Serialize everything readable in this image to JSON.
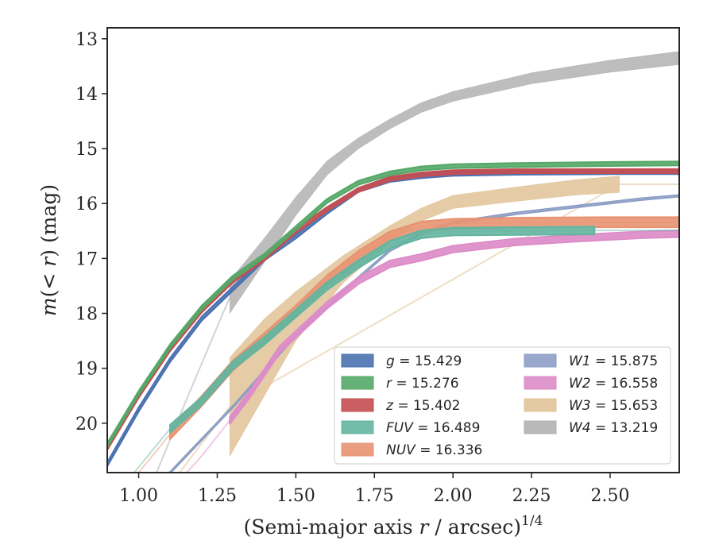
{
  "chart_data": {
    "type": "line",
    "xlabel_main": "(Semi-major axis ",
    "xlabel_var": "r",
    "xlabel_unit": " / arcsec)",
    "xlabel_sup": "1/4",
    "ylabel_pre": "m",
    "ylabel_mid": "(< ",
    "ylabel_var": "r",
    "ylabel_post": ") (mag)",
    "xlim": [
      0.9,
      2.72
    ],
    "ylim": [
      20.9,
      12.8
    ],
    "y_inverted": true,
    "xticks": [
      "1.00",
      "1.25",
      "1.50",
      "1.75",
      "2.00",
      "2.25",
      "2.50"
    ],
    "xtick_values": [
      1.0,
      1.25,
      1.5,
      1.75,
      2.0,
      2.25,
      2.5
    ],
    "yticks": [
      "13",
      "14",
      "15",
      "16",
      "17",
      "18",
      "19",
      "20"
    ],
    "ytick_values": [
      13,
      14,
      15,
      16,
      17,
      18,
      19,
      20
    ],
    "legend_position": "lower-right",
    "series": [
      {
        "key": "g",
        "var": "g",
        "value": "= 15.429",
        "color": "#4c72b0",
        "halfwidth": 0.035,
        "x": [
          0.9,
          1.0,
          1.1,
          1.2,
          1.3,
          1.4,
          1.5,
          1.6,
          1.7,
          1.8,
          1.9,
          2.0,
          2.2,
          2.5,
          2.72
        ],
        "y": [
          20.75,
          19.75,
          18.85,
          18.1,
          17.55,
          17.0,
          16.6,
          16.15,
          15.75,
          15.57,
          15.5,
          15.46,
          15.44,
          15.43,
          15.43
        ]
      },
      {
        "key": "r",
        "var": "r",
        "value": "= 15.276",
        "color": "#55a868",
        "halfwidth": 0.035,
        "x": [
          0.9,
          1.0,
          1.1,
          1.2,
          1.3,
          1.4,
          1.5,
          1.6,
          1.7,
          1.8,
          1.9,
          2.0,
          2.2,
          2.5,
          2.72
        ],
        "y": [
          20.4,
          19.45,
          18.6,
          17.9,
          17.35,
          16.95,
          16.45,
          15.95,
          15.62,
          15.45,
          15.36,
          15.32,
          15.3,
          15.28,
          15.27
        ]
      },
      {
        "key": "z",
        "var": "z",
        "value": "= 15.402",
        "color": "#c44e52",
        "halfwidth": 0.035,
        "x": [
          0.9,
          1.0,
          1.1,
          1.2,
          1.3,
          1.4,
          1.5,
          1.6,
          1.7,
          1.8,
          1.9,
          2.0,
          2.2,
          2.5,
          2.72
        ],
        "y": [
          20.45,
          19.5,
          18.65,
          17.95,
          17.4,
          17.0,
          16.5,
          16.1,
          15.75,
          15.55,
          15.47,
          15.43,
          15.41,
          15.41,
          15.41
        ]
      },
      {
        "key": "FUV",
        "var": "FUV",
        "value": "= 16.489",
        "color": "#64b5a0",
        "halfwidth": 0.07,
        "x": [
          0.9,
          1.1,
          1.2,
          1.3,
          1.4,
          1.5,
          1.6,
          1.7,
          1.8,
          1.9,
          2.0,
          2.45,
          2.72
        ],
        "y": [
          21.5,
          20.1,
          19.6,
          18.95,
          18.5,
          18.0,
          17.5,
          17.1,
          16.75,
          16.56,
          16.51,
          16.49,
          16.49
        ],
        "faint_before": 1.1,
        "faint_after": 2.45
      },
      {
        "key": "NUV",
        "var": "NUV",
        "value": "= 16.336",
        "color": "#e89372",
        "halfwidth": 0.09,
        "x": [
          0.9,
          1.1,
          1.2,
          1.3,
          1.4,
          1.5,
          1.6,
          1.7,
          1.8,
          1.9,
          2.0,
          2.2,
          2.5,
          2.72
        ],
        "y": [
          21.6,
          20.2,
          19.6,
          18.95,
          18.45,
          17.95,
          17.4,
          16.95,
          16.6,
          16.42,
          16.37,
          16.35,
          16.34,
          16.34
        ],
        "faint_before": 1.1
      },
      {
        "key": "W1",
        "var": "W1",
        "value": "= 15.875",
        "color": "#8c9ec4",
        "halfwidth": 0.02,
        "x": [
          0.9,
          1.1,
          1.3,
          1.5,
          1.7,
          1.8,
          1.9,
          2.0,
          2.2,
          2.4,
          2.6,
          2.72
        ],
        "y": [
          22.0,
          20.9,
          19.7,
          18.4,
          17.35,
          16.85,
          16.55,
          16.35,
          16.18,
          16.05,
          15.92,
          15.86
        ],
        "faint_before": 2.72,
        "faint_after": 2.72,
        "faint_line": true
      },
      {
        "key": "W2",
        "var": "W2",
        "value": "= 16.558",
        "color": "#dd8cc8",
        "halfwidth": 0.06,
        "x": [
          0.9,
          1.2,
          1.29,
          1.35,
          1.45,
          1.6,
          1.7,
          1.8,
          1.9,
          2.0,
          2.2,
          2.4,
          2.6,
          2.72
        ],
        "y": [
          22.5,
          20.6,
          19.95,
          19.5,
          18.65,
          17.85,
          17.4,
          17.1,
          16.98,
          16.83,
          16.7,
          16.63,
          16.57,
          16.55
        ],
        "faint_before": 1.29
      },
      {
        "key": "W3",
        "var": "W3",
        "value": "= 15.653",
        "color": "#e1c398",
        "halfwidth_pts": [
          0.9,
          0.7,
          0.45,
          0.25,
          0.15,
          0.12,
          0.12,
          0.13,
          0.14,
          0.15
        ],
        "x": [
          1.29,
          1.4,
          1.5,
          1.65,
          1.8,
          1.9,
          2.0,
          2.2,
          2.4,
          2.53
        ],
        "y": [
          19.7,
          18.8,
          18.05,
          17.2,
          16.55,
          16.2,
          15.97,
          15.83,
          15.7,
          15.65
        ],
        "faint_x": [
          1.05,
          1.29,
          2.53,
          2.72
        ],
        "faint_y": [
          21.5,
          19.7,
          15.65,
          15.65
        ]
      },
      {
        "key": "W4",
        "var": "W4",
        "value": "= 13.219",
        "color": "#b1b1b1",
        "halfwidth_pts": [
          0.3,
          0.22,
          0.17,
          0.13,
          0.1,
          0.09,
          0.09,
          0.09,
          0.1,
          0.11,
          0.12
        ],
        "x": [
          1.29,
          1.4,
          1.5,
          1.6,
          1.7,
          1.8,
          1.9,
          2.0,
          2.25,
          2.5,
          2.72
        ],
        "y": [
          17.7,
          16.85,
          16.05,
          15.35,
          14.9,
          14.55,
          14.25,
          14.05,
          13.72,
          13.5,
          13.35
        ],
        "faint_x": [
          1.05,
          1.15,
          1.29
        ],
        "faint_y": [
          21.0,
          19.6,
          17.7
        ]
      }
    ]
  }
}
